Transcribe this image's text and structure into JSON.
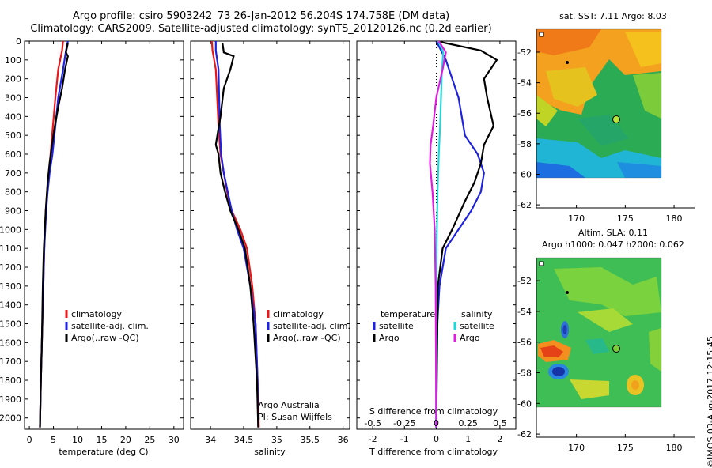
{
  "header": {
    "title_line1": "Argo profile: csiro 5903242_73 26-Jan-2012 56.204S 174.758E (DM data)",
    "title_line2": "Climatology: CARS2009. Satellite-adjusted climatology: synTS_20120126.nc (0.2d earlier)"
  },
  "colors": {
    "climatology": "#e8171b",
    "satellite": "#1e22e0",
    "argo": "#000000",
    "sat_salinity": "#1fd8dc",
    "argo_salinity": "#e01ddf"
  },
  "chart_data": [
    {
      "type": "line",
      "panel": "temperature",
      "xlabel": "temperature (deg C)",
      "ylim": [
        2060,
        0
      ],
      "xlim": [
        -1,
        32
      ],
      "xticks": [
        0,
        5,
        10,
        15,
        20,
        25,
        30
      ],
      "yticks": [
        0,
        100,
        200,
        300,
        400,
        500,
        600,
        700,
        800,
        900,
        1000,
        1100,
        1200,
        1300,
        1400,
        1500,
        1600,
        1700,
        1800,
        1900,
        2000
      ],
      "legend": [
        "climatology",
        "satellite-adj. clim.",
        "Argo(..raw -QC)"
      ],
      "series": [
        {
          "name": "climatology",
          "color": "#e8171b",
          "x": [
            7.0,
            6.8,
            6.0,
            5.4,
            4.9,
            4.4,
            4.0,
            3.7,
            3.4,
            3.1,
            2.9,
            2.6,
            2.4,
            2.2
          ],
          "y": [
            0,
            50,
            150,
            300,
            450,
            600,
            700,
            800,
            900,
            1100,
            1300,
            1600,
            1800,
            2050
          ]
        },
        {
          "name": "satellite-adj. clim.",
          "color": "#1e22e0",
          "x": [
            8.0,
            7.6,
            7.0,
            6.0,
            5.4,
            4.8,
            4.2,
            3.8,
            3.5,
            3.1,
            2.9,
            2.6,
            2.4,
            2.2
          ],
          "y": [
            0,
            50,
            150,
            300,
            450,
            600,
            700,
            800,
            900,
            1100,
            1300,
            1600,
            1800,
            2050
          ]
        },
        {
          "name": "Argo(..raw -QC)",
          "color": "#000000",
          "x": [
            8.0,
            7.6,
            8.0,
            7.4,
            6.8,
            6.0,
            5.3,
            4.7,
            4.2,
            3.8,
            3.4,
            3.0,
            2.8,
            2.6,
            2.4,
            2.2
          ],
          "y": [
            10,
            60,
            80,
            150,
            250,
            350,
            450,
            550,
            650,
            750,
            900,
            1100,
            1300,
            1600,
            1800,
            2050
          ]
        }
      ]
    },
    {
      "type": "line",
      "panel": "salinity",
      "xlabel": "salinity",
      "ylim": [
        2060,
        0
      ],
      "xlim": [
        33.7,
        36.1
      ],
      "xticks": [
        34,
        34.5,
        35,
        35.5,
        36
      ],
      "legend": [
        "climatology",
        "satellite-adj. clim.",
        "Argo(..raw -QC)"
      ],
      "annotation_line1": "Argo Australia",
      "annotation_line2": "PI: Susan Wijffels",
      "series": [
        {
          "name": "climatology",
          "color": "#e8171b",
          "x": [
            34.02,
            34.03,
            34.08,
            34.1,
            34.12,
            34.15,
            34.2,
            34.25,
            34.32,
            34.45,
            34.55,
            34.63,
            34.68,
            34.71,
            34.73
          ],
          "y": [
            0,
            50,
            150,
            300,
            450,
            600,
            700,
            800,
            900,
            1000,
            1100,
            1300,
            1500,
            1800,
            2050
          ]
        },
        {
          "name": "satellite-adj. clim.",
          "color": "#1e22e0",
          "x": [
            34.08,
            34.08,
            34.12,
            34.13,
            34.14,
            34.16,
            34.2,
            34.26,
            34.32,
            34.4,
            34.5,
            34.6,
            34.68,
            34.71,
            34.72
          ],
          "y": [
            0,
            50,
            150,
            300,
            450,
            600,
            700,
            800,
            900,
            1000,
            1100,
            1300,
            1500,
            1800,
            2050
          ]
        },
        {
          "name": "Argo(..raw -QC)",
          "color": "#000000",
          "x": [
            34.18,
            34.2,
            34.35,
            34.3,
            34.2,
            34.15,
            34.08,
            34.12,
            34.15,
            34.22,
            34.3,
            34.42,
            34.52,
            34.6,
            34.65,
            34.7,
            34.72
          ],
          "y": [
            10,
            60,
            80,
            150,
            250,
            400,
            550,
            600,
            700,
            800,
            900,
            1000,
            1100,
            1300,
            1500,
            1800,
            2050
          ]
        }
      ]
    },
    {
      "type": "line",
      "panel": "difference",
      "xlabel": "T difference from climatology",
      "xlabel_top": "S difference from climatology",
      "ylim": [
        2060,
        0
      ],
      "xlim": [
        -2.5,
        2.5
      ],
      "xticks": [
        -2,
        -1,
        0,
        1,
        2
      ],
      "xticks_s": [
        "-0.5",
        "-0.25",
        "0",
        "0.25",
        "0.5"
      ],
      "legend_temperature": [
        "temperature",
        "satellite",
        "Argo"
      ],
      "legend_salinity": [
        "salinity",
        "satellite",
        "Argo"
      ],
      "series": [
        {
          "name": "satellite",
          "color": "#1e22e0",
          "x": [
            0.0,
            0.3,
            0.5,
            0.7,
            0.9,
            1.3,
            1.5,
            1.4,
            1.1,
            0.7,
            0.3,
            0.1,
            0.0,
            0.0
          ],
          "y": [
            0,
            100,
            200,
            300,
            500,
            600,
            700,
            800,
            900,
            1000,
            1100,
            1300,
            1600,
            2050
          ]
        },
        {
          "name": "Argo",
          "color": "#000000",
          "x": [
            0.0,
            1.4,
            1.9,
            1.5,
            1.6,
            1.8,
            1.5,
            1.4,
            1.2,
            0.9,
            0.5,
            0.2,
            0.05,
            0.0
          ],
          "y": [
            0,
            50,
            100,
            200,
            300,
            450,
            550,
            650,
            750,
            850,
            1000,
            1100,
            1300,
            2050
          ]
        },
        {
          "name": "satellite",
          "color": "#1fd8dc",
          "x": [
            0.06,
            0.22,
            0.18,
            0.15,
            0.12,
            0.08,
            0.04,
            0.02,
            0.0,
            0.0,
            -0.01
          ],
          "y": [
            0,
            60,
            150,
            300,
            450,
            600,
            800,
            1000,
            1300,
            1600,
            2050
          ]
        },
        {
          "name": "Argo",
          "color": "#e01ddf",
          "x": [
            0.08,
            0.3,
            0.2,
            0.0,
            -0.1,
            -0.18,
            -0.2,
            -0.12,
            -0.05,
            -0.02,
            0.0
          ],
          "y": [
            0,
            60,
            150,
            300,
            450,
            550,
            650,
            800,
            1000,
            1300,
            2050
          ]
        }
      ]
    }
  ],
  "maps": {
    "sst": {
      "title": "sat. SST: 7.11  Argo: 8.03",
      "lon_ticks": [
        170,
        175,
        180
      ],
      "lat_ticks": [
        -52,
        -54,
        -56,
        -58,
        -60,
        -62
      ]
    },
    "sla": {
      "title_line1": "Altim. SLA: 0.11",
      "title_line2": "Argo h1000: 0.047 h2000: 0.062",
      "lon_ticks": [
        170,
        175,
        180
      ],
      "lat_ticks": [
        -52,
        -54,
        -56,
        -58,
        -60,
        -62
      ]
    }
  },
  "footer": {
    "credit": "©IMOS 03-Aug-2017 12:15:45"
  }
}
